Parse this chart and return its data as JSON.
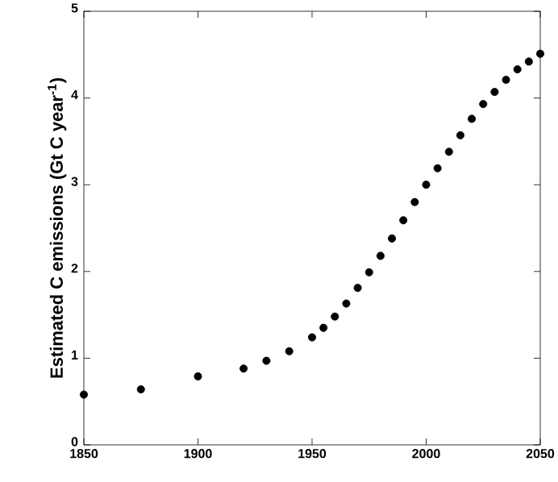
{
  "chart_data": {
    "type": "scatter",
    "ylabel": "Estimated C emissions (Gt C year$^{-1}$)",
    "x": [
      1850,
      1875,
      1900,
      1920,
      1930,
      1940,
      1950,
      1955,
      1960,
      1965,
      1970,
      1975,
      1980,
      1985,
      1990,
      1995,
      2000,
      2005,
      2010,
      2015,
      2020,
      2025,
      2030,
      2035,
      2040,
      2045,
      2050
    ],
    "values": [
      0.58,
      0.64,
      0.79,
      0.88,
      0.97,
      1.08,
      1.24,
      1.35,
      1.48,
      1.63,
      1.81,
      1.99,
      2.18,
      2.38,
      2.59,
      2.8,
      3.0,
      3.19,
      3.38,
      3.57,
      3.76,
      3.93,
      4.07,
      4.21,
      4.33,
      4.42,
      4.51
    ],
    "color": "#000000",
    "marker": "circle",
    "xlim": [
      1850,
      2050
    ],
    "xticks": [
      1850,
      1900,
      1950,
      2000,
      2050
    ],
    "ylim": [
      0,
      5
    ],
    "yticks": [
      0,
      1,
      2,
      3,
      4,
      5
    ],
    "grid": false
  }
}
